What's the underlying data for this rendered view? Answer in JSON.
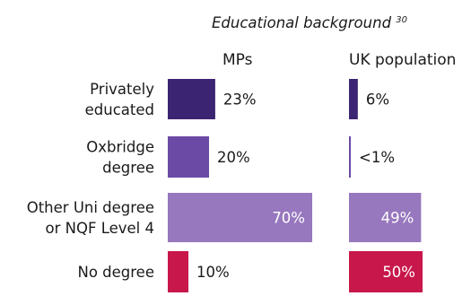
{
  "chart_data": {
    "type": "bar",
    "orientation": "horizontal",
    "title": "Educational background",
    "footnote": "30",
    "categories": [
      [
        "Privately",
        "educated"
      ],
      [
        "Oxbridge",
        "degree"
      ],
      [
        "Other Uni degree",
        "or NQF Level 4"
      ],
      [
        "No degree"
      ]
    ],
    "series": [
      {
        "name": "MPs",
        "values": [
          23,
          20,
          70,
          10
        ],
        "labels": [
          "23%",
          "20%",
          "70%",
          "10%"
        ]
      },
      {
        "name": "UK population",
        "values": [
          6,
          0.5,
          49,
          50
        ],
        "labels": [
          "6%",
          "<1%",
          "49%",
          "50%"
        ]
      }
    ],
    "colors": [
      "#3b2472",
      "#6b4aa6",
      "#9777bd",
      "#c8174b"
    ],
    "label_inside_threshold": 40,
    "grid": false,
    "legend": "none"
  }
}
